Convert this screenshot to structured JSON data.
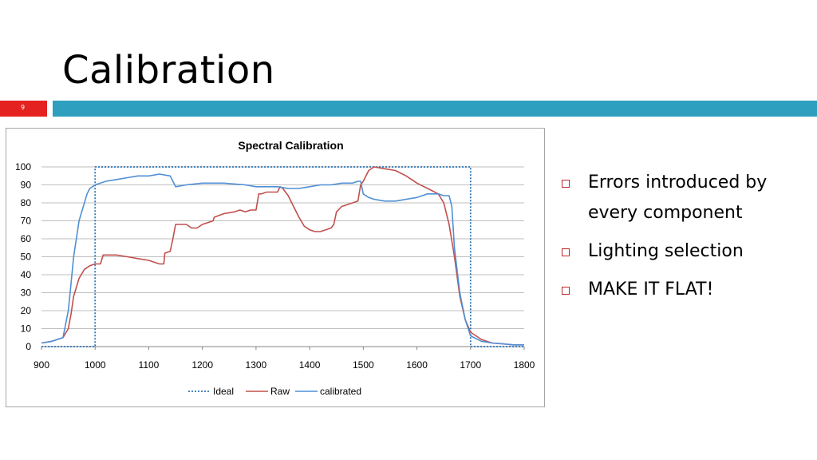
{
  "slide": {
    "title": "Calibration",
    "slide_number": "9",
    "bullets": [
      "Errors introduced by every component",
      "Lighting selection",
      "MAKE IT FLAT!"
    ]
  },
  "colors": {
    "accent_bar": "#2e9fbf",
    "number_bar": "#e42320",
    "ideal": "#2e75b6",
    "raw": "#c0504d",
    "calibrated": "#4f8fd4"
  },
  "chart_data": {
    "type": "line",
    "title": "Spectral Calibration",
    "xlabel": "",
    "ylabel": "",
    "xlim": [
      900,
      1800
    ],
    "ylim": [
      0,
      100
    ],
    "x_ticks": [
      900,
      1000,
      1100,
      1200,
      1300,
      1400,
      1500,
      1600,
      1700,
      1800
    ],
    "y_ticks": [
      0,
      10,
      20,
      30,
      40,
      50,
      60,
      70,
      80,
      90,
      100
    ],
    "grid": "horizontal",
    "legend_position": "bottom",
    "series": [
      {
        "name": "Ideal",
        "style": "dotted",
        "color": "#2e75b6",
        "x": [
          900,
          1000,
          1000,
          1700,
          1700,
          1800
        ],
        "y": [
          0,
          0,
          100,
          100,
          0,
          0
        ]
      },
      {
        "name": "Raw",
        "style": "solid",
        "color": "#c0504d",
        "x": [
          900,
          920,
          940,
          950,
          955,
          960,
          970,
          980,
          990,
          1000,
          1010,
          1015,
          1020,
          1040,
          1060,
          1080,
          1100,
          1120,
          1128,
          1130,
          1140,
          1145,
          1150,
          1170,
          1180,
          1190,
          1200,
          1210,
          1220,
          1222,
          1240,
          1260,
          1270,
          1280,
          1290,
          1300,
          1305,
          1310,
          1320,
          1340,
          1345,
          1350,
          1360,
          1370,
          1380,
          1390,
          1400,
          1410,
          1420,
          1430,
          1440,
          1445,
          1450,
          1460,
          1470,
          1480,
          1490,
          1495,
          1500,
          1510,
          1520,
          1540,
          1560,
          1580,
          1600,
          1620,
          1640,
          1650,
          1660,
          1670,
          1680,
          1690,
          1700,
          1720,
          1740,
          1760,
          1780,
          1800
        ],
        "y": [
          2,
          3,
          5,
          10,
          18,
          28,
          38,
          43,
          45,
          46,
          46,
          51,
          51,
          51,
          50,
          49,
          48,
          46,
          46,
          52,
          53,
          60,
          68,
          68,
          66,
          66,
          68,
          69,
          70,
          72,
          74,
          75,
          76,
          75,
          76,
          76,
          85,
          85,
          86,
          86,
          89,
          88,
          84,
          78,
          72,
          67,
          65,
          64,
          64,
          65,
          66,
          68,
          75,
          78,
          79,
          80,
          81,
          90,
          92,
          98,
          100,
          99,
          98,
          95,
          91,
          88,
          85,
          80,
          68,
          50,
          28,
          15,
          8,
          4,
          2,
          1.5,
          1,
          1
        ]
      },
      {
        "name": "calibrated",
        "style": "solid",
        "color": "#4f8fd4",
        "x": [
          900,
          920,
          940,
          950,
          955,
          960,
          965,
          970,
          975,
          980,
          985,
          990,
          995,
          1000,
          1010,
          1020,
          1040,
          1060,
          1080,
          1100,
          1120,
          1140,
          1145,
          1150,
          1170,
          1200,
          1240,
          1280,
          1300,
          1320,
          1340,
          1360,
          1380,
          1400,
          1420,
          1440,
          1460,
          1480,
          1490,
          1495,
          1500,
          1510,
          1520,
          1540,
          1560,
          1580,
          1600,
          1620,
          1640,
          1650,
          1660,
          1665,
          1670,
          1680,
          1690,
          1700,
          1720,
          1740,
          1760,
          1780,
          1800
        ],
        "y": [
          2,
          3,
          5,
          20,
          35,
          50,
          60,
          70,
          75,
          80,
          85,
          88,
          89,
          90,
          91,
          92,
          93,
          94,
          95,
          95,
          96,
          95,
          92,
          89,
          90,
          91,
          91,
          90,
          89,
          89,
          89,
          88,
          88,
          89,
          90,
          90,
          91,
          91,
          92,
          92,
          85,
          83,
          82,
          81,
          81,
          82,
          83,
          85,
          85,
          84,
          84,
          78,
          55,
          30,
          15,
          6,
          3,
          2,
          1.5,
          1,
          1
        ]
      }
    ]
  }
}
